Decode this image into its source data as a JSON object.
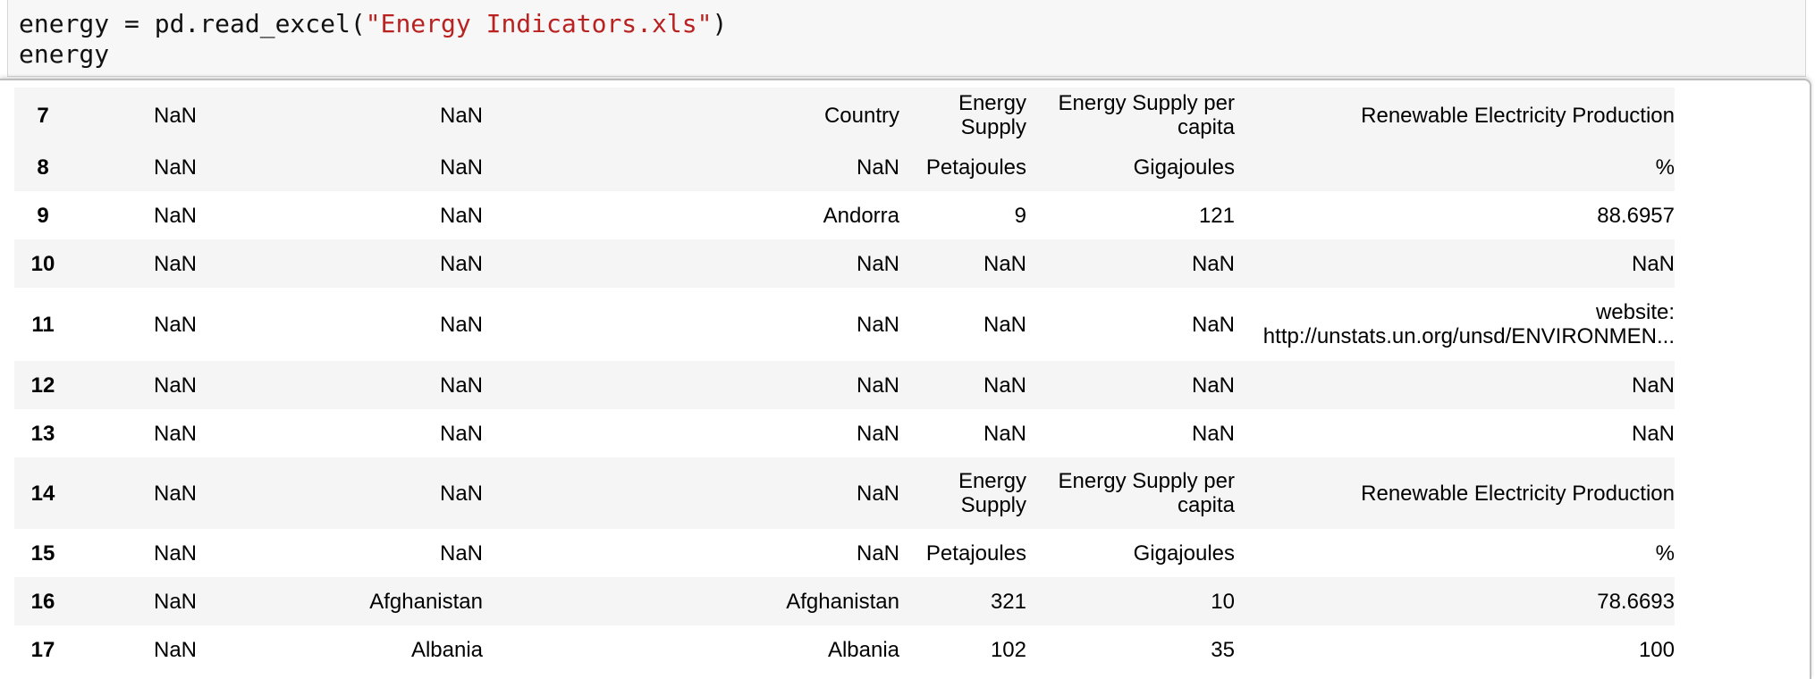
{
  "code": {
    "line1_prefix": "energy = pd.read_excel(",
    "line1_string": "\"Energy Indicators.xls\"",
    "line1_suffix": ")",
    "line2": "energy"
  },
  "table": {
    "rows": [
      {
        "index": "7",
        "cells": [
          "NaN",
          "NaN",
          "Country",
          "Energy Supply",
          "Energy Supply per capita",
          "Renewable Electricity Production"
        ]
      },
      {
        "index": "8",
        "cells": [
          "NaN",
          "NaN",
          "NaN",
          "Petajoules",
          "Gigajoules",
          "%"
        ]
      },
      {
        "index": "9",
        "cells": [
          "NaN",
          "NaN",
          "Andorra",
          "9",
          "121",
          "88.6957"
        ]
      },
      {
        "index": "10",
        "cells": [
          "NaN",
          "NaN",
          "NaN",
          "NaN",
          "NaN",
          "NaN"
        ]
      },
      {
        "index": "11",
        "cells": [
          "NaN",
          "NaN",
          "NaN",
          "NaN",
          "NaN",
          "website: http://unstats.un.org/unsd/ENVIRONMEN..."
        ]
      },
      {
        "index": "12",
        "cells": [
          "NaN",
          "NaN",
          "NaN",
          "NaN",
          "NaN",
          "NaN"
        ]
      },
      {
        "index": "13",
        "cells": [
          "NaN",
          "NaN",
          "NaN",
          "NaN",
          "NaN",
          "NaN"
        ]
      },
      {
        "index": "14",
        "cells": [
          "NaN",
          "NaN",
          "NaN",
          "Energy Supply",
          "Energy Supply per capita",
          "Renewable Electricity Production"
        ]
      },
      {
        "index": "15",
        "cells": [
          "NaN",
          "NaN",
          "NaN",
          "Petajoules",
          "Gigajoules",
          "%"
        ]
      },
      {
        "index": "16",
        "cells": [
          "NaN",
          "Afghanistan",
          "Afghanistan",
          "321",
          "10",
          "78.6693"
        ]
      },
      {
        "index": "17",
        "cells": [
          "NaN",
          "Albania",
          "Albania",
          "102",
          "35",
          "100"
        ]
      }
    ]
  }
}
